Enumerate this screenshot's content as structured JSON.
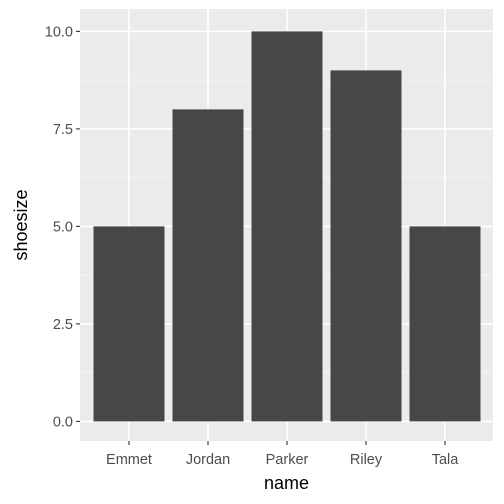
{
  "chart_data": {
    "type": "bar",
    "categories": [
      "Emmet",
      "Jordan",
      "Parker",
      "Riley",
      "Tala"
    ],
    "values": [
      5,
      8,
      10,
      9,
      5
    ],
    "title": "",
    "xlabel": "name",
    "ylabel": "shoesize",
    "ylim": [
      0,
      10
    ],
    "yticks": [
      0,
      2.5,
      5,
      7.5,
      10
    ],
    "ytick_labels": [
      "0.0",
      "2.5",
      "5.0",
      "7.5",
      "10.0"
    ],
    "grid": true,
    "legend": "none",
    "colors": {
      "panel_background": "#ebebeb",
      "grid_major": "#ffffff",
      "bar_fill": "#474747",
      "tick_text": "#4d4d4d",
      "tick_mark": "#333333",
      "title_text": "#000000"
    }
  }
}
